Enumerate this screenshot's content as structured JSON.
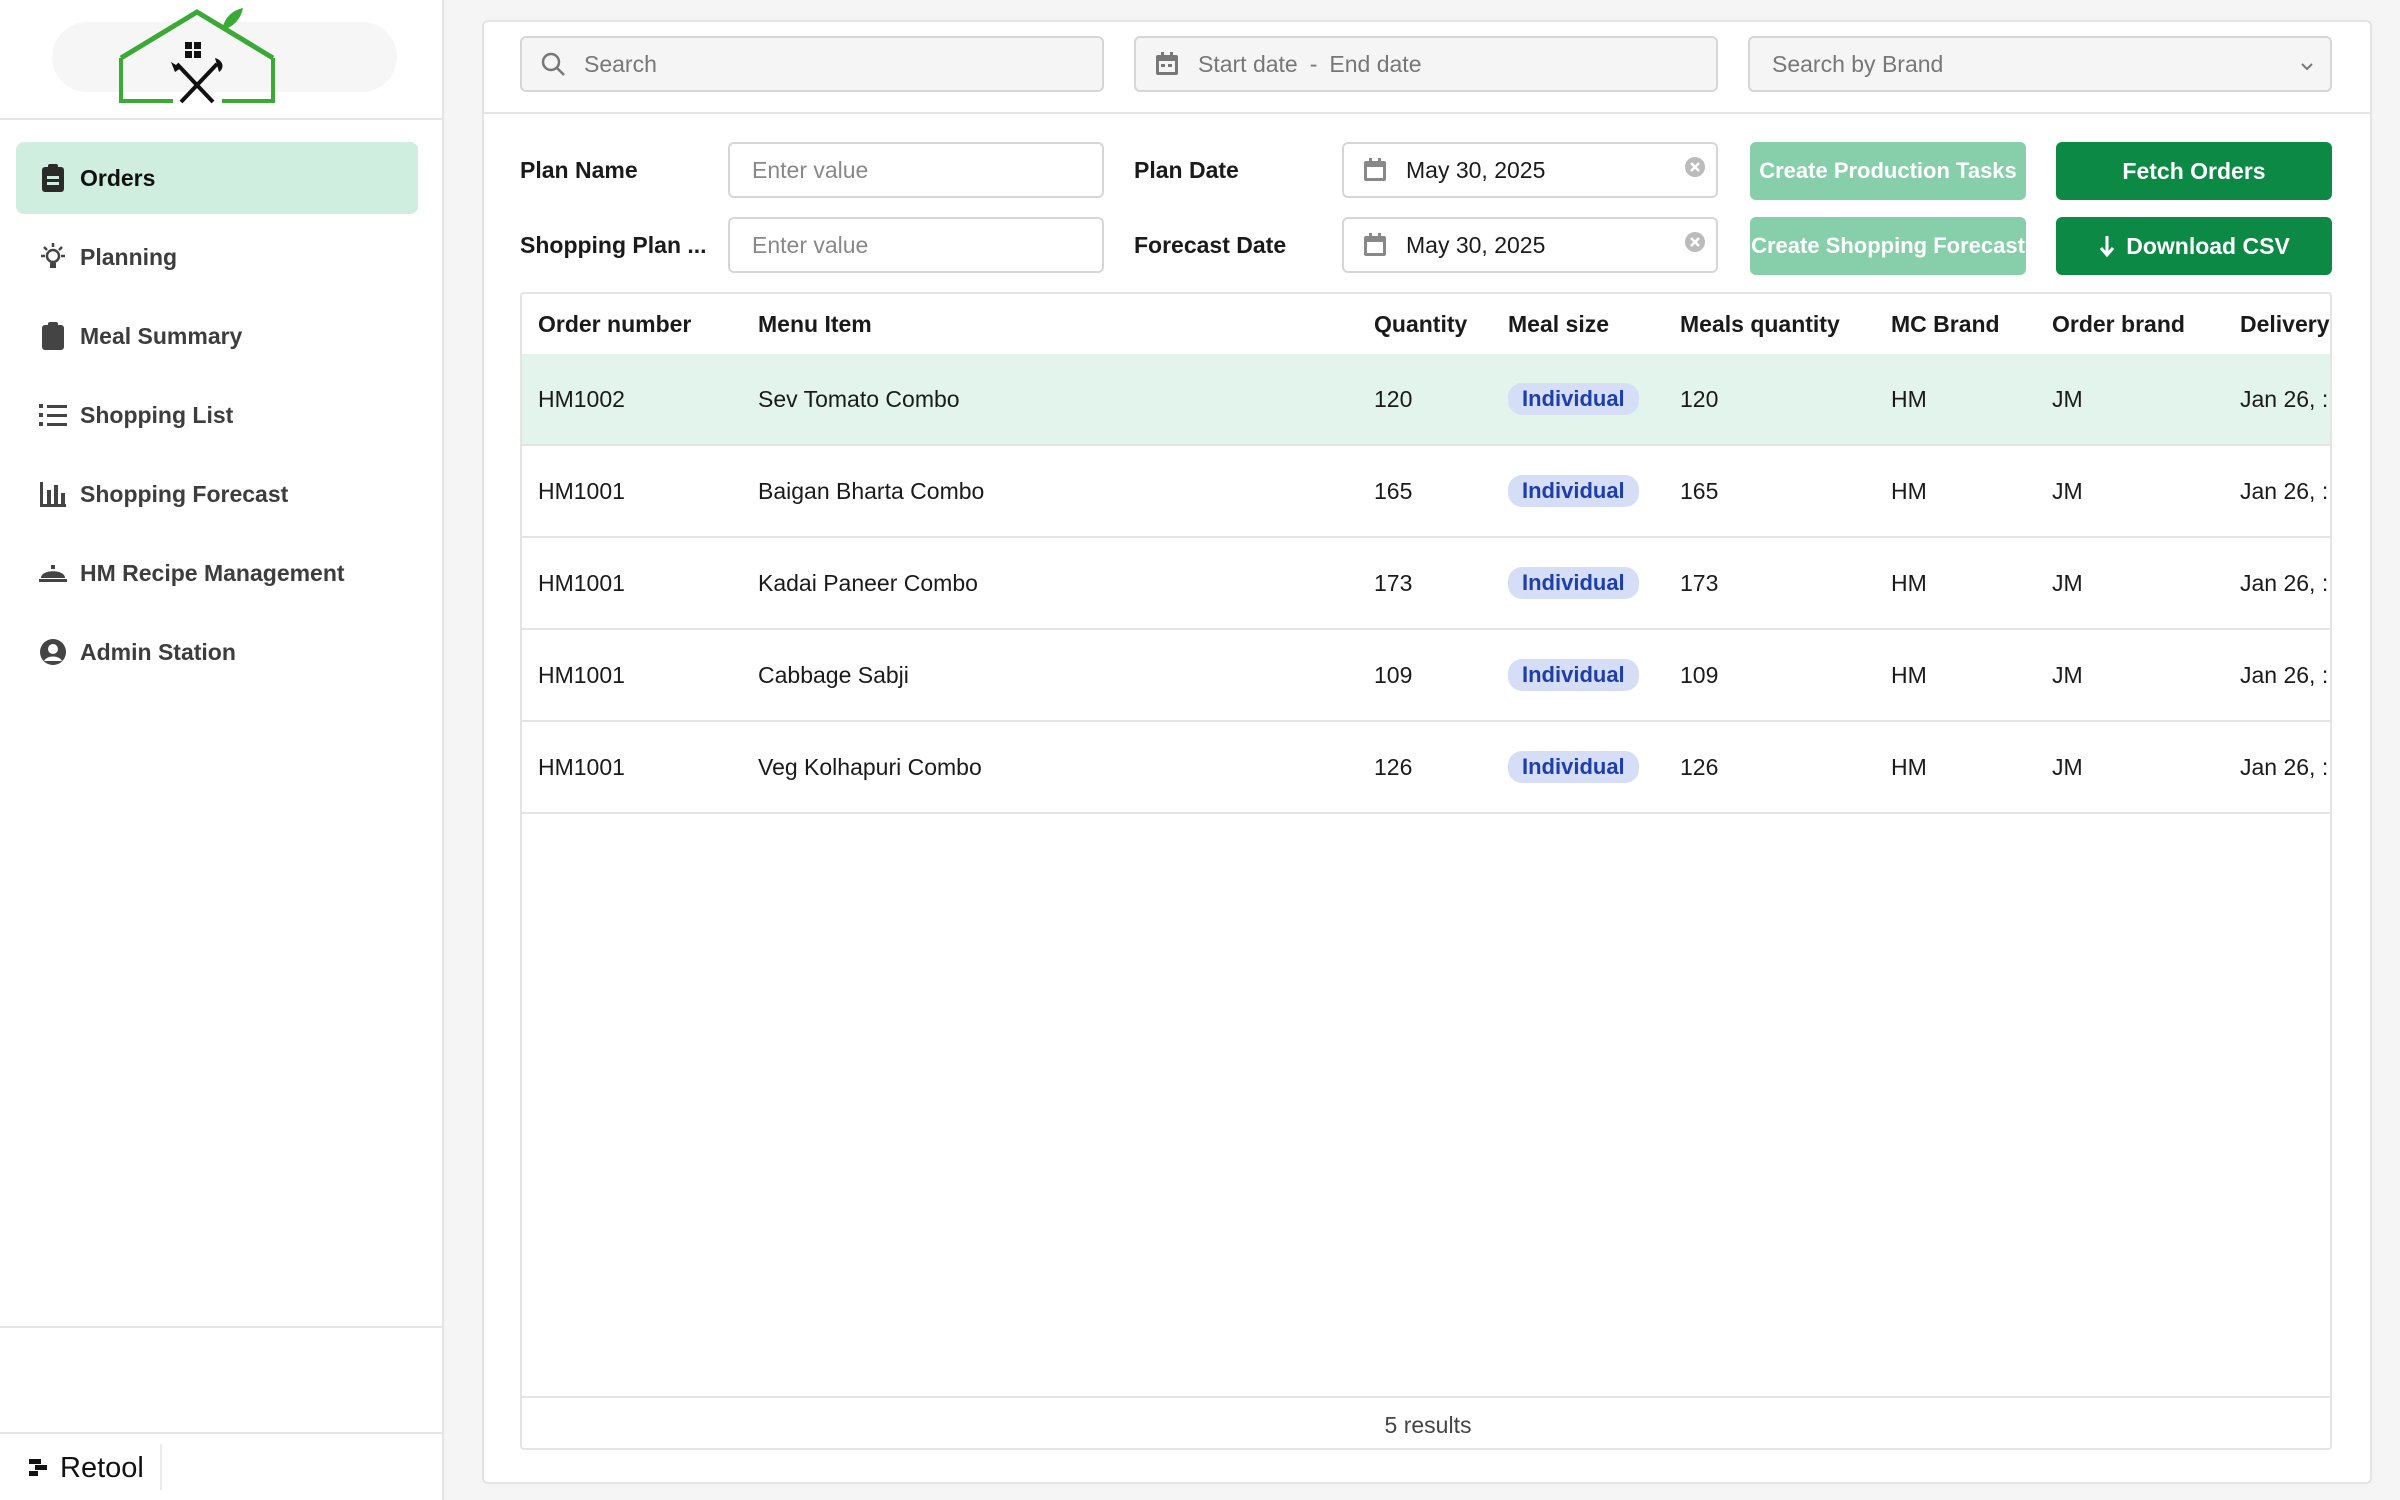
{
  "sidebar": {
    "items": [
      {
        "label": "Orders",
        "icon": "clipboard-icon",
        "active": true
      },
      {
        "label": "Planning",
        "icon": "lightbulb-icon"
      },
      {
        "label": "Meal Summary",
        "icon": "clipboard-icon"
      },
      {
        "label": "Shopping List",
        "icon": "list-icon"
      },
      {
        "label": "Shopping Forecast",
        "icon": "bar-chart-icon"
      },
      {
        "label": "HM Recipe Management",
        "icon": "cloche-icon"
      },
      {
        "label": "Admin Station",
        "icon": "user-circle-icon"
      }
    ],
    "footer_brand": "Retool"
  },
  "topbar": {
    "search_placeholder": "Search",
    "start_date_placeholder": "Start date",
    "date_separator": "-",
    "end_date_placeholder": "End date",
    "brand_placeholder": "Search by Brand"
  },
  "form": {
    "plan_name_label": "Plan Name",
    "plan_name_placeholder": "Enter value",
    "shopping_plan_label": "Shopping Plan ...",
    "shopping_plan_placeholder": "Enter value",
    "plan_date_label": "Plan Date",
    "plan_date_value": "May 30, 2025",
    "forecast_date_label": "Forecast Date",
    "forecast_date_value": "May 30, 2025",
    "create_production_label": "Create Production Tasks",
    "fetch_orders_label": "Fetch Orders",
    "create_shopping_label": "Create Shopping Forecast",
    "download_csv_label": "Download CSV"
  },
  "colors": {
    "accent": "#0c8a45",
    "accent_light": "#86cfaa",
    "active_nav": "#cfeedf",
    "selected_row": "#e3f4ec",
    "pill_bg": "#d6def7",
    "pill_text": "#1f3fa8"
  },
  "table": {
    "columns": [
      "Order number",
      "Menu Item",
      "Quantity",
      "Meal size",
      "Meals quantity",
      "MC Brand",
      "Order brand",
      "Delivery"
    ],
    "rows": [
      {
        "order": "HM1002",
        "menu": "Sev Tomato Combo",
        "qty": "120",
        "size": "Individual",
        "meals": "120",
        "mc": "HM",
        "brand": "JM",
        "delivery": "Jan 26, :"
      },
      {
        "order": "HM1001",
        "menu": "Baigan Bharta Combo",
        "qty": "165",
        "size": "Individual",
        "meals": "165",
        "mc": "HM",
        "brand": "JM",
        "delivery": "Jan 26, :"
      },
      {
        "order": "HM1001",
        "menu": "Kadai Paneer Combo",
        "qty": "173",
        "size": "Individual",
        "meals": "173",
        "mc": "HM",
        "brand": "JM",
        "delivery": "Jan 26, :"
      },
      {
        "order": "HM1001",
        "menu": "Cabbage Sabji",
        "qty": "109",
        "size": "Individual",
        "meals": "109",
        "mc": "HM",
        "brand": "JM",
        "delivery": "Jan 26, :"
      },
      {
        "order": "HM1001",
        "menu": "Veg Kolhapuri Combo",
        "qty": "126",
        "size": "Individual",
        "meals": "126",
        "mc": "HM",
        "brand": "JM",
        "delivery": "Jan 26, :"
      }
    ],
    "footer": "5 results"
  }
}
